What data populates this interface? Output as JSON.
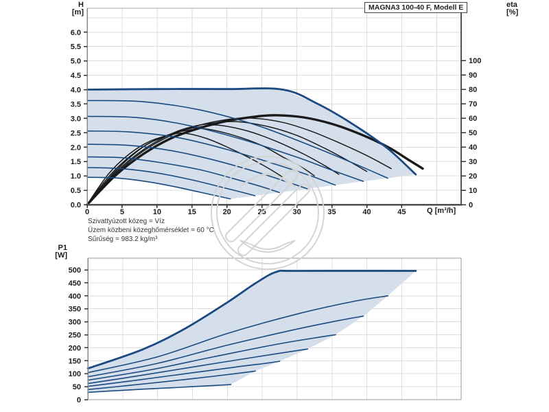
{
  "header": {
    "title": "MAGNA3 100-40 F, Modell E"
  },
  "axes": {
    "h_label": "H",
    "h_unit": "[m]",
    "eta_label": "eta",
    "eta_unit": "[%]",
    "q_label": "Q [m³/h]",
    "p1_label": "P1",
    "p1_unit": "[W]"
  },
  "info": {
    "lines": [
      "Szivattyúzott közeg = Víz",
      "Üzem közbeni közeghőmérséklet = 60 °C",
      "Sűrűség = 983.2 kg/m³"
    ]
  },
  "colors": {
    "curve_blue": "#1a4a80",
    "curve_black": "#1a1a1a",
    "shade": "#d4dfeb",
    "grid": "#dcdcdc",
    "axis_dark": "#4d4d4d",
    "axis_mid": "#555555",
    "axis_gray": "#999999",
    "tick": "#333333",
    "watermark": "#d4d4d4"
  },
  "chart_data": [
    {
      "type": "line",
      "title": "Head / efficiency curves",
      "xlabel": "Q [m³/h]",
      "ylabel": "H [m]",
      "y2label": "eta [%]",
      "xlim": [
        0,
        53.5
      ],
      "ylim": [
        0,
        6.83
      ],
      "y2lim": [
        0,
        136.2
      ],
      "grid": true,
      "x_ticks": [
        0,
        5,
        10,
        15,
        20,
        25,
        30,
        35,
        40,
        45
      ],
      "x_grid_max": 50,
      "y_ticks": [
        "0.0",
        "0.5",
        "1.0",
        "1.5",
        "2.0",
        "2.5",
        "3.0",
        "3.5",
        "4.0",
        "4.5",
        "5.0",
        "5.5",
        "6.0"
      ],
      "y_grid_max": 6.5,
      "y2_ticks": [
        0,
        10,
        20,
        30,
        40,
        50,
        60,
        70,
        80,
        90,
        100
      ],
      "speed_curves": [
        {
          "points": [
            [
              0,
              4.0
            ],
            [
              10,
              4.02
            ],
            [
              20,
              4.02
            ],
            [
              28,
              4.0
            ],
            [
              33,
              3.5
            ],
            [
              38,
              2.8
            ],
            [
              43,
              1.95
            ],
            [
              47,
              1.05
            ]
          ]
        },
        {
          "points": [
            [
              0,
              3.62
            ],
            [
              8,
              3.58
            ],
            [
              16,
              3.3
            ],
            [
              24,
              2.78
            ],
            [
              32,
              2.05
            ],
            [
              38,
              1.45
            ],
            [
              43,
              0.92
            ]
          ]
        },
        {
          "points": [
            [
              0,
              3.07
            ],
            [
              7,
              3.03
            ],
            [
              14,
              2.78
            ],
            [
              22,
              2.28
            ],
            [
              30,
              1.65
            ],
            [
              35,
              1.2
            ],
            [
              39.5,
              0.81
            ]
          ]
        },
        {
          "points": [
            [
              0,
              2.56
            ],
            [
              6,
              2.53
            ],
            [
              13,
              2.33
            ],
            [
              20,
              1.92
            ],
            [
              27,
              1.4
            ],
            [
              32,
              1.0
            ],
            [
              35.5,
              0.68
            ]
          ]
        },
        {
          "points": [
            [
              0,
              2.1
            ],
            [
              6,
              2.06
            ],
            [
              12,
              1.88
            ],
            [
              18,
              1.56
            ],
            [
              24,
              1.15
            ],
            [
              28.5,
              0.8
            ],
            [
              31.5,
              0.55
            ]
          ]
        },
        {
          "points": [
            [
              0,
              1.66
            ],
            [
              5,
              1.63
            ],
            [
              10,
              1.48
            ],
            [
              16,
              1.22
            ],
            [
              21,
              0.9
            ],
            [
              25,
              0.62
            ],
            [
              27.5,
              0.42
            ]
          ]
        },
        {
          "points": [
            [
              0,
              1.29
            ],
            [
              5,
              1.25
            ],
            [
              10,
              1.1
            ],
            [
              15,
              0.86
            ],
            [
              19,
              0.62
            ],
            [
              22,
              0.44
            ],
            [
              24,
              0.31
            ]
          ]
        },
        {
          "points": [
            [
              0,
              0.95
            ],
            [
              4,
              0.93
            ],
            [
              8,
              0.82
            ],
            [
              12,
              0.65
            ],
            [
              16,
              0.44
            ],
            [
              20.5,
              0.2
            ]
          ]
        }
      ],
      "eta_curves": [
        {
          "points": [
            [
              0,
              0
            ],
            [
              4,
              20
            ],
            [
              8,
              35
            ],
            [
              12,
              46
            ],
            [
              16,
              53
            ],
            [
              20,
              58
            ],
            [
              24,
              61
            ],
            [
              27,
              62
            ],
            [
              31,
              60.5
            ],
            [
              35,
              56
            ],
            [
              39,
              49
            ],
            [
              43,
              40
            ],
            [
              46,
              31
            ],
            [
              48,
              25
            ]
          ]
        },
        {
          "points": [
            [
              0,
              0
            ],
            [
              4,
              21
            ],
            [
              8,
              37
            ],
            [
              12,
              48
            ],
            [
              16,
              55
            ],
            [
              20,
              59
            ],
            [
              23.5,
              60
            ],
            [
              28,
              57
            ],
            [
              32,
              51
            ],
            [
              36,
              43
            ],
            [
              40,
              34
            ],
            [
              43.5,
              25
            ]
          ]
        },
        {
          "points": [
            [
              0,
              0
            ],
            [
              4,
              22
            ],
            [
              8,
              38
            ],
            [
              12,
              49
            ],
            [
              15,
              54
            ],
            [
              18,
              56.5
            ],
            [
              21.5,
              57.5
            ],
            [
              26,
              54
            ],
            [
              30,
              48
            ],
            [
              34,
              39
            ],
            [
              37.5,
              30
            ],
            [
              40,
              23
            ]
          ]
        },
        {
          "points": [
            [
              0,
              0
            ],
            [
              4,
              23
            ],
            [
              8,
              40
            ],
            [
              11,
              47
            ],
            [
              14,
              52
            ],
            [
              17,
              54.5
            ],
            [
              19,
              55
            ],
            [
              23,
              51
            ],
            [
              27,
              44
            ],
            [
              31,
              35
            ],
            [
              34,
              27
            ],
            [
              36,
              21
            ]
          ]
        },
        {
          "points": [
            [
              0,
              0
            ],
            [
              3,
              19
            ],
            [
              6,
              33
            ],
            [
              9,
              43
            ],
            [
              12,
              49
            ],
            [
              15,
              52
            ],
            [
              17,
              52.5
            ],
            [
              21,
              48
            ],
            [
              25,
              41
            ],
            [
              28,
              33
            ],
            [
              31,
              25
            ],
            [
              32.5,
              20
            ]
          ]
        },
        {
          "points": [
            [
              0,
              0
            ],
            [
              3,
              21
            ],
            [
              6,
              35
            ],
            [
              9,
              44
            ],
            [
              12,
              48.5
            ],
            [
              14,
              49.5
            ],
            [
              17,
              46
            ],
            [
              20,
              40
            ],
            [
              23,
              33
            ],
            [
              26,
              25
            ],
            [
              28,
              19
            ]
          ]
        }
      ]
    },
    {
      "type": "line",
      "title": "Power input curves",
      "xlabel": "Q [m³/h]",
      "ylabel": "P1 [W]",
      "xlim": [
        0,
        53.5
      ],
      "ylim": [
        0,
        545
      ],
      "grid": true,
      "x_grid_max": 50,
      "y_ticks": [
        0,
        50,
        100,
        150,
        200,
        250,
        300,
        350,
        400,
        450,
        500
      ],
      "curves": [
        {
          "points": [
            [
              0,
              120
            ],
            [
              8,
              195
            ],
            [
              14,
              275
            ],
            [
              20,
              375
            ],
            [
              24,
              448
            ],
            [
              27,
              492
            ],
            [
              30,
              496
            ],
            [
              47,
              496
            ]
          ]
        },
        {
          "points": [
            [
              0,
              104
            ],
            [
              10,
              165
            ],
            [
              20,
              255
            ],
            [
              30,
              330
            ],
            [
              38,
              378
            ],
            [
              43,
              400
            ]
          ]
        },
        {
          "points": [
            [
              0,
              88
            ],
            [
              10,
              140
            ],
            [
              20,
              210
            ],
            [
              30,
              272
            ],
            [
              36,
              305
            ],
            [
              39.5,
              322
            ]
          ]
        },
        {
          "points": [
            [
              0,
              75
            ],
            [
              9,
              115
            ],
            [
              18,
              165
            ],
            [
              27,
              213
            ],
            [
              33,
              240
            ],
            [
              35.5,
              250
            ]
          ]
        },
        {
          "points": [
            [
              0,
              62
            ],
            [
              8,
              95
            ],
            [
              16,
              130
            ],
            [
              24,
              164
            ],
            [
              29,
              185
            ],
            [
              31.5,
              195
            ]
          ]
        },
        {
          "points": [
            [
              0,
              51
            ],
            [
              7,
              75
            ],
            [
              14,
              100
            ],
            [
              21,
              125
            ],
            [
              25.5,
              140
            ],
            [
              27.5,
              148
            ]
          ]
        },
        {
          "points": [
            [
              0,
              39
            ],
            [
              6,
              55
            ],
            [
              12,
              72
            ],
            [
              18,
              90
            ],
            [
              22,
              103
            ],
            [
              24,
              110
            ]
          ]
        },
        {
          "points": [
            [
              0,
              28
            ],
            [
              5,
              36
            ],
            [
              10,
              43
            ],
            [
              15,
              50
            ],
            [
              18.5,
              55
            ],
            [
              20.5,
              58
            ]
          ]
        }
      ]
    }
  ]
}
